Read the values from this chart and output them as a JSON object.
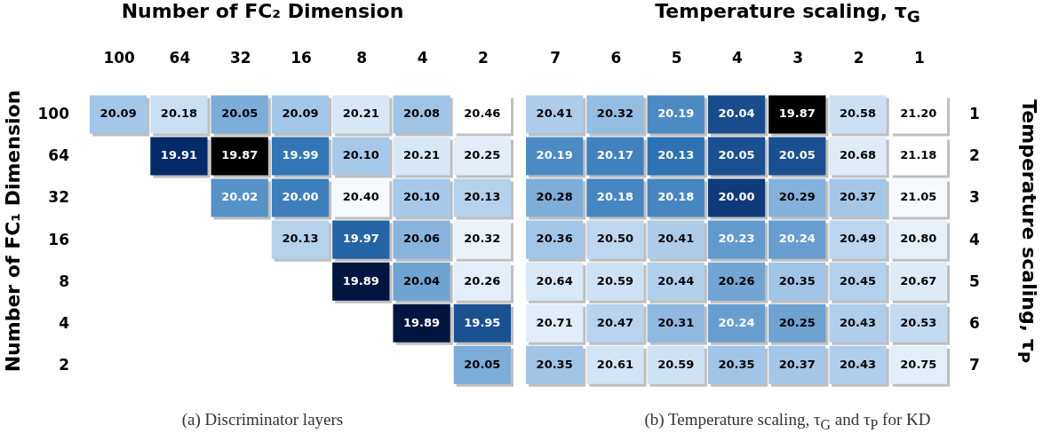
{
  "chart_data": [
    {
      "type": "heatmap",
      "xlabel": "Number of FC₂ Dimension",
      "ylabel": "Number of FC₁ Dimension",
      "categories": [
        "100",
        "64",
        "32",
        "16",
        "8",
        "4",
        "2"
      ],
      "y_categories": [
        "100",
        "64",
        "32",
        "16",
        "8",
        "4",
        "2"
      ],
      "cells": [
        [
          20.09,
          20.18,
          20.05,
          20.09,
          20.21,
          20.08,
          20.46
        ],
        [
          null,
          19.91,
          19.87,
          19.99,
          20.1,
          20.21,
          20.25
        ],
        [
          null,
          null,
          20.02,
          20.0,
          20.4,
          20.1,
          20.13
        ],
        [
          null,
          null,
          null,
          20.13,
          19.97,
          20.06,
          20.32
        ],
        [
          null,
          null,
          null,
          null,
          19.89,
          20.04,
          20.26
        ],
        [
          null,
          null,
          null,
          null,
          null,
          19.89,
          19.95
        ],
        [
          null,
          null,
          null,
          null,
          null,
          null,
          20.05
        ]
      ],
      "data_labels": true,
      "cell_labels": [
        [
          "20.09",
          "20.18",
          "20.05",
          "20.09",
          "20.21",
          "20.08",
          "20.46"
        ],
        [
          null,
          "19.91",
          "19.87",
          "19.99",
          "20.10",
          "20.21",
          "20.25"
        ],
        [
          null,
          null,
          "20.02",
          "20.00",
          "20.40",
          "20.10",
          "20.13"
        ],
        [
          null,
          null,
          null,
          "20.13",
          "19.97",
          "20.06",
          "20.32"
        ],
        [
          null,
          null,
          null,
          null,
          "19.89",
          "20.04",
          "20.26"
        ],
        [
          null,
          null,
          null,
          null,
          null,
          "19.89",
          "19.95"
        ],
        [
          null,
          null,
          null,
          null,
          null,
          null,
          "20.05"
        ]
      ],
      "annotations": [
        "(a) Discriminator layers"
      ]
    },
    {
      "type": "heatmap",
      "xlabel": "Temperature scaling, τ$_{G}$",
      "ylabel": "Temperature scaling, τ$_{P}$",
      "categories": [
        "7",
        "6",
        "5",
        "4",
        "3",
        "2",
        "1"
      ],
      "y_categories": [
        "1",
        "2",
        "3",
        "4",
        "5",
        "6",
        "7"
      ],
      "cells": [
        [
          20.41,
          20.32,
          20.19,
          20.04,
          19.87,
          20.58,
          21.2
        ],
        [
          20.19,
          20.17,
          20.13,
          20.05,
          20.05,
          20.68,
          21.18
        ],
        [
          20.28,
          20.18,
          20.18,
          20.0,
          20.29,
          20.37,
          21.05
        ],
        [
          20.36,
          20.5,
          20.41,
          20.23,
          20.24,
          20.49,
          20.8
        ],
        [
          20.64,
          20.59,
          20.44,
          20.26,
          20.35,
          20.45,
          20.67
        ],
        [
          20.71,
          20.47,
          20.31,
          20.24,
          20.25,
          20.43,
          20.53
        ],
        [
          20.35,
          20.61,
          20.59,
          20.35,
          20.37,
          20.43,
          20.75
        ]
      ],
      "data_labels": true,
      "cell_labels": [
        [
          "20.41",
          "20.32",
          "20.19",
          "20.04",
          "19.87",
          "20.58",
          "21.20"
        ],
        [
          "20.19",
          "20.17",
          "20.13",
          "20.05",
          "20.05",
          "20.68",
          "21.18"
        ],
        [
          "20.28",
          "20.18",
          "20.18",
          "20.00",
          "20.29",
          "20.37",
          "21.05"
        ],
        [
          "20.36",
          "20.50",
          "20.41",
          "20.23",
          "20.24",
          "20.49",
          "20.80"
        ],
        [
          "20.64",
          "20.59",
          "20.44",
          "20.26",
          "20.35",
          "20.45",
          "20.67"
        ],
        [
          "20.71",
          "20.47",
          "20.31",
          "20.24",
          "20.25",
          "20.43",
          "20.53"
        ],
        [
          "20.35",
          "20.61",
          "20.59",
          "20.35",
          "20.37",
          "20.43",
          "20.75"
        ]
      ],
      "annotations": [
        "(b) Temperature scaling, τ$_{G}$ and τ$_{P}$ for KD"
      ]
    }
  ]
}
